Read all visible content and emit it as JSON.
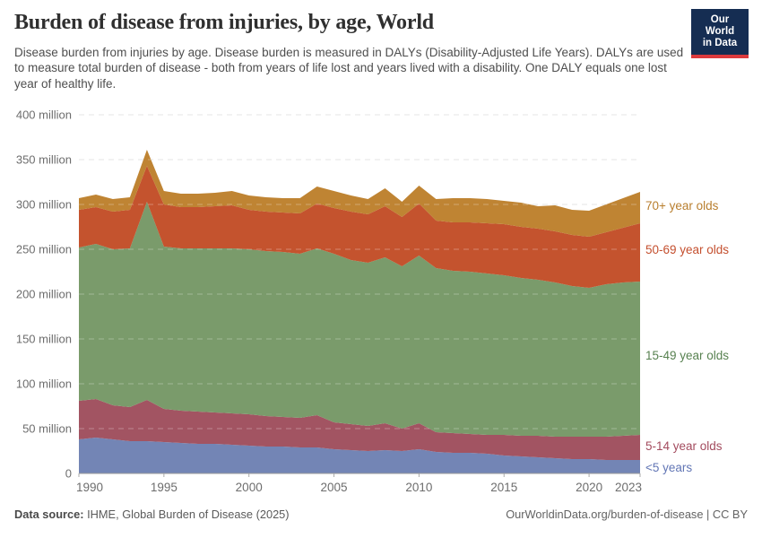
{
  "header": {
    "title": "Burden of disease from injuries, by age, World",
    "subtitle": "Disease burden from injuries by age. Disease burden is measured in DALYs (Disability-Adjusted Life Years). DALYs are used to measure total burden of disease - both from years of life lost and years lived with a disability. One DALY equals one lost year of healthy life.",
    "logo": {
      "line1": "Our World",
      "line2": "in Data",
      "bg_color": "#152d52",
      "stripe_color": "#dc3a3d"
    }
  },
  "chart_data": {
    "type": "area",
    "stacked": true,
    "title": "Burden of disease from injuries, by age, World",
    "grid": "horizontal-dashed",
    "legend_position": "right",
    "ylim": [
      0,
      400
    ],
    "y_unit": "million DALYs",
    "x": [
      1990,
      1991,
      1992,
      1993,
      1994,
      1995,
      1996,
      1997,
      1998,
      1999,
      2000,
      2001,
      2002,
      2003,
      2004,
      2005,
      2006,
      2007,
      2008,
      2009,
      2010,
      2011,
      2012,
      2013,
      2014,
      2015,
      2016,
      2017,
      2018,
      2019,
      2020,
      2021,
      2022,
      2023
    ],
    "x_ticks": [
      1990,
      1995,
      2000,
      2005,
      2010,
      2015,
      2020,
      2023
    ],
    "y_ticks": [
      0,
      50,
      100,
      150,
      200,
      250,
      300,
      350,
      400
    ],
    "y_tick_labels": [
      "0",
      "50 million",
      "100 million",
      "150 million",
      "200 million",
      "250 million",
      "300 million",
      "350 million",
      "400 million"
    ],
    "series": [
      {
        "name": "<5 years",
        "color": "#7385b5",
        "label_color": "#6276b5",
        "values": [
          38,
          40,
          38,
          36,
          36,
          35,
          34,
          33,
          33,
          32,
          31,
          30,
          30,
          29,
          29,
          27,
          26,
          25,
          26,
          25,
          27,
          24,
          23,
          23,
          22,
          20,
          19,
          18,
          17,
          16,
          16,
          15,
          15,
          15
        ]
      },
      {
        "name": "5-14 year olds",
        "color": "#a25462",
        "label_color": "#a34b5e",
        "values": [
          43,
          43,
          38,
          38,
          46,
          37,
          36,
          36,
          35,
          35,
          35,
          34,
          33,
          33,
          36,
          30,
          29,
          28,
          30,
          25,
          29,
          22,
          22,
          21,
          21,
          23,
          23,
          24,
          24,
          25,
          25,
          26,
          27,
          28
        ]
      },
      {
        "name": "15-49 year olds",
        "color": "#7a9b6b",
        "label_color": "#578150",
        "values": [
          171,
          173,
          174,
          177,
          221,
          181,
          181,
          182,
          183,
          184,
          184,
          184,
          184,
          183,
          186,
          188,
          183,
          182,
          185,
          181,
          187,
          183,
          181,
          181,
          180,
          178,
          176,
          174,
          172,
          168,
          166,
          170,
          171,
          171
        ]
      },
      {
        "name": "50-69 year olds",
        "color": "#c4532e",
        "label_color": "#c44f2e",
        "values": [
          42,
          41,
          42,
          43,
          40,
          47,
          46,
          46,
          47,
          48,
          44,
          44,
          44,
          45,
          50,
          51,
          54,
          54,
          57,
          55,
          58,
          53,
          54,
          55,
          56,
          57,
          57,
          57,
          57,
          57,
          57,
          58,
          61,
          65
        ]
      },
      {
        "name": "70+ year olds",
        "color": "#bf8433",
        "label_color": "#b87e2e",
        "values": [
          13,
          14,
          14,
          14,
          18,
          15,
          15,
          15,
          15,
          16,
          16,
          16,
          16,
          17,
          19,
          19,
          18,
          17,
          20,
          17,
          20,
          24,
          27,
          27,
          27,
          26,
          27,
          25,
          29,
          28,
          29,
          31,
          33,
          35
        ]
      }
    ]
  },
  "footer": {
    "source_label": "Data source:",
    "source_text": " IHME, Global Burden of Disease (2025)",
    "link_text": "OurWorldinData.org/burden-of-disease",
    "separator": " | ",
    "license_text": "CC BY"
  }
}
